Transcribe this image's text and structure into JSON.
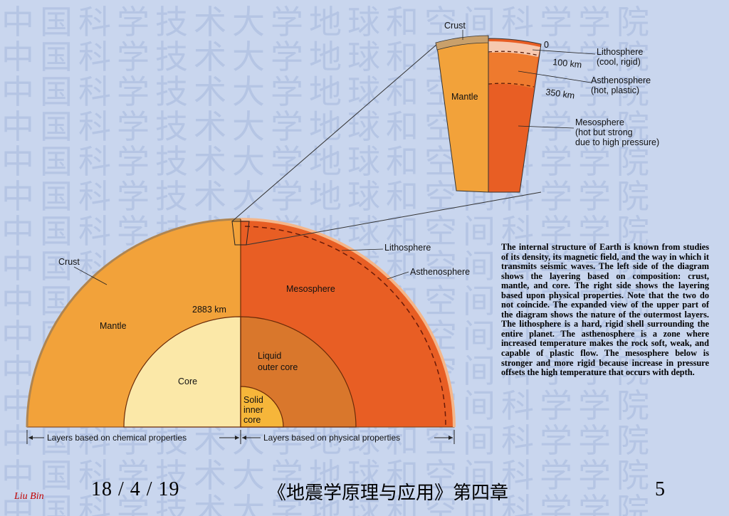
{
  "watermark": {
    "text": "中国科学技术大学地球和空间科学学院"
  },
  "inset": {
    "crust_label": "Crust",
    "mantle_label": "Mantle",
    "depth_0": "0",
    "depth_100": "100 km",
    "depth_350": "350 km",
    "lithosphere": [
      "Lithosphere",
      "(cool, rigid)"
    ],
    "asthenosphere": [
      "Asthenosphere",
      "(hot, plastic)"
    ],
    "mesosphere": [
      "Mesosphere",
      "(hot but strong",
      "due to high pressure)"
    ]
  },
  "main": {
    "crust_label": "Crust",
    "mantle_label": "Mantle",
    "core_label": "Core",
    "depth_label": "2883 km",
    "mesosphere_label": "Mesosphere",
    "lithosphere_label": "Lithosphere",
    "asthenosphere_label": "Asthenosphere",
    "liquid_outer_core": [
      "Liquid",
      "outer core"
    ],
    "solid_inner_core": [
      "Solid",
      "inner",
      "core"
    ],
    "chemical_axis": "Layers based on chemical properties",
    "physical_axis": "Layers based on physical properties"
  },
  "caption": {
    "lead": "The internal structure of Earth",
    "body": " is known from studies of its density, its magnetic field, and the way in which it transmits seismic waves. The left side of the diagram shows the layering based on composition: crust, mantle, and core. The right side shows the layering based upon physical properties. Note that the two do not coincide. The expanded view of the upper part of the diagram shows the nature of the outermost layers. The lithosphere is a hard, rigid shell surrounding the entire planet. The asthenosphere is a zone where increased temperature makes the rock soft, weak, and capable of plastic flow. The mesosphere below is stronger and more rigid because increase in pressure offsets the high temperature that occurs with depth."
  },
  "footer": {
    "date": "18 / 4 / 19",
    "title": "《地震学原理与应用》第四章",
    "page": "5",
    "author": "Liu Bin"
  },
  "colors": {
    "background": "#c9d6ee",
    "watermark": "#b5c5e4",
    "mantle": "#f2a23a",
    "mesosphere": "#e85e24",
    "outer_core": "#d9772c",
    "core": "#fbe8a8",
    "inner_core": "#f6b63a",
    "crust": "#c9a06b",
    "author": "#c00000"
  }
}
